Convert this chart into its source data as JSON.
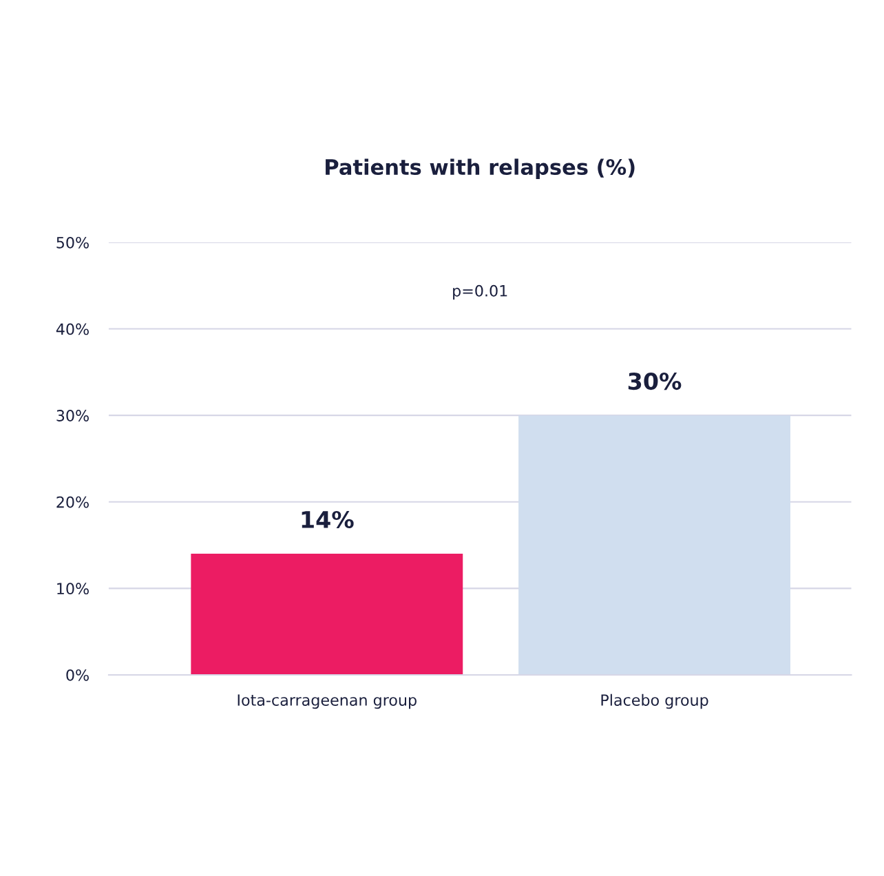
{
  "chart_data": {
    "type": "bar",
    "title": "Patients with relapses (%)",
    "categories": [
      "Iota-carrageenan group",
      "Placebo group"
    ],
    "values": [
      14,
      30
    ],
    "colors": [
      "#ec1c63",
      "#d0deef"
    ],
    "value_labels": [
      "14%",
      "30%"
    ],
    "ylim": [
      0,
      50
    ],
    "yticks": [
      {
        "value": 0,
        "label": "0%"
      },
      {
        "value": 10,
        "label": "10%"
      },
      {
        "value": 20,
        "label": "20%"
      },
      {
        "value": 30,
        "label": "30%"
      },
      {
        "value": 40,
        "label": "40%"
      },
      {
        "value": 50,
        "label": "50%"
      }
    ],
    "grid": "y",
    "annotations": [
      "p=0.01"
    ]
  }
}
